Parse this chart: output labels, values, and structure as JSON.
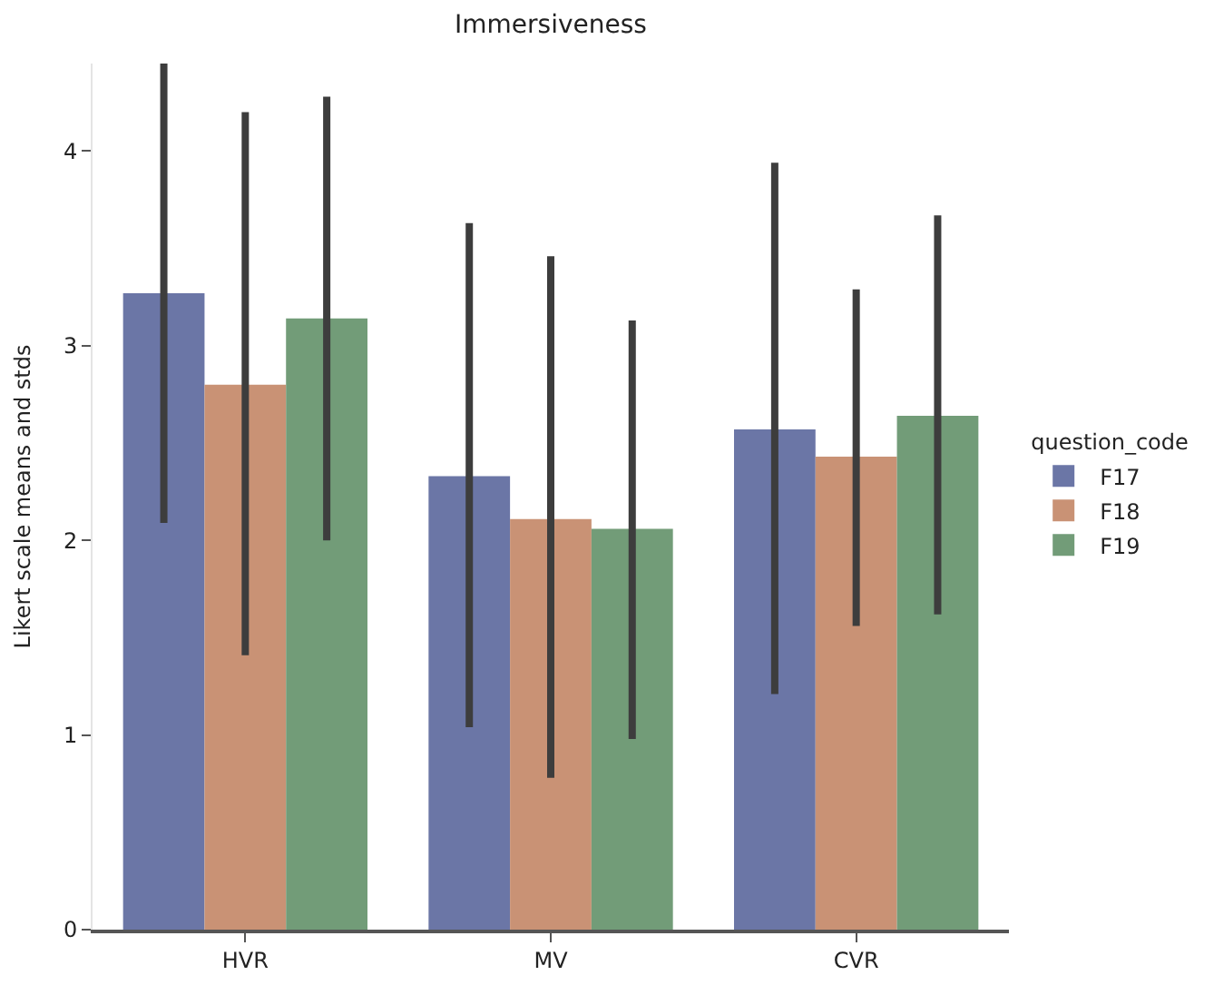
{
  "chart_data": {
    "type": "bar",
    "title": "Immersiveness",
    "ylabel": "Likert scale means and stds",
    "legend_title": "question_code",
    "categories": [
      "HVR",
      "MV",
      "CVR"
    ],
    "series": [
      {
        "name": "F17",
        "color": "#6b76a6",
        "values": [
          3.27,
          2.33,
          2.57
        ],
        "errors": [
          [
            2.09,
            4.45
          ],
          [
            1.04,
            3.63
          ],
          [
            1.21,
            3.94
          ]
        ]
      },
      {
        "name": "F18",
        "color": "#c99275",
        "values": [
          2.8,
          2.11,
          2.43
        ],
        "errors": [
          [
            1.41,
            4.2
          ],
          [
            0.78,
            3.46
          ],
          [
            1.56,
            3.29
          ]
        ]
      },
      {
        "name": "F19",
        "color": "#729c78",
        "values": [
          3.14,
          2.06,
          2.64
        ],
        "errors": [
          [
            2.0,
            4.28
          ],
          [
            0.98,
            3.13
          ],
          [
            1.62,
            3.67
          ]
        ]
      }
    ],
    "ylim": [
      0,
      4.45
    ],
    "yticks": [
      0,
      1,
      2,
      3,
      4
    ],
    "legend": "right"
  }
}
